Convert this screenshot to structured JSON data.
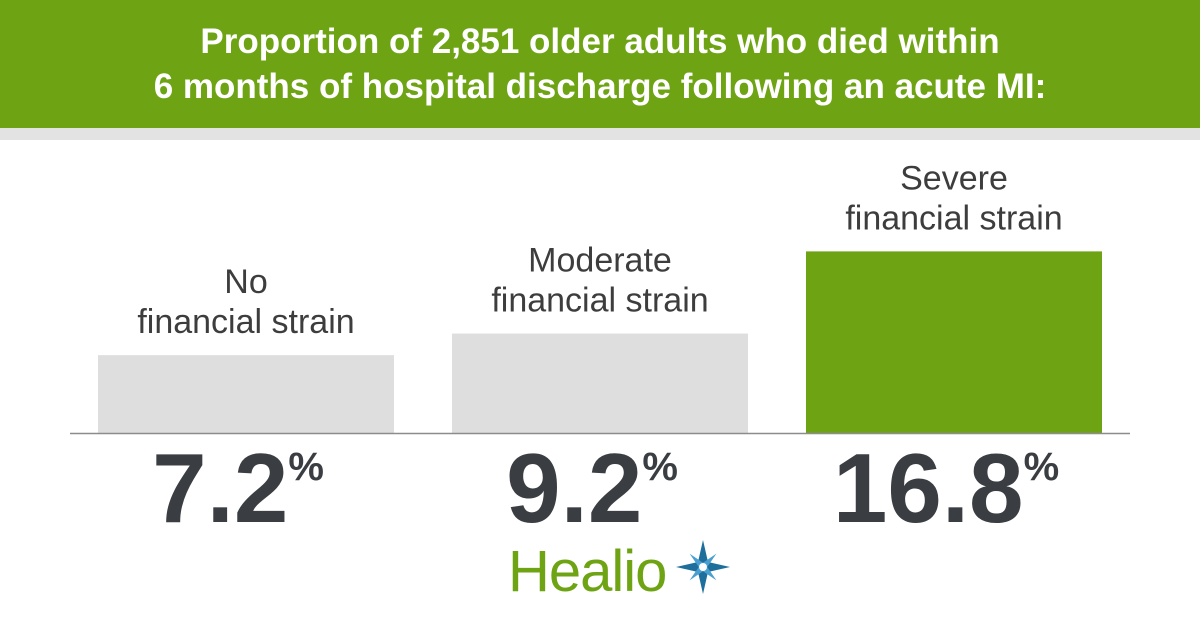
{
  "header": {
    "line1": "Proportion of 2,851 older adults who died within",
    "line2": "6 months of hospital discharge following an acute MI:"
  },
  "chart_data": {
    "type": "bar",
    "categories": [
      {
        "line1": "No",
        "line2": "financial strain"
      },
      {
        "line1": "Moderate",
        "line2": "financial strain"
      },
      {
        "line1": "Severe",
        "line2": "financial strain"
      }
    ],
    "values": [
      7.2,
      9.2,
      16.8
    ],
    "value_labels": [
      "7.2",
      "9.2",
      "16.8"
    ],
    "unit": "%",
    "ylim": [
      0,
      18.5
    ],
    "colors": [
      "#dedede",
      "#dedede",
      "#6ea414"
    ],
    "grid": false
  },
  "logo": {
    "text": "Healio",
    "icon": "star-icon",
    "color": "#6ea414"
  }
}
